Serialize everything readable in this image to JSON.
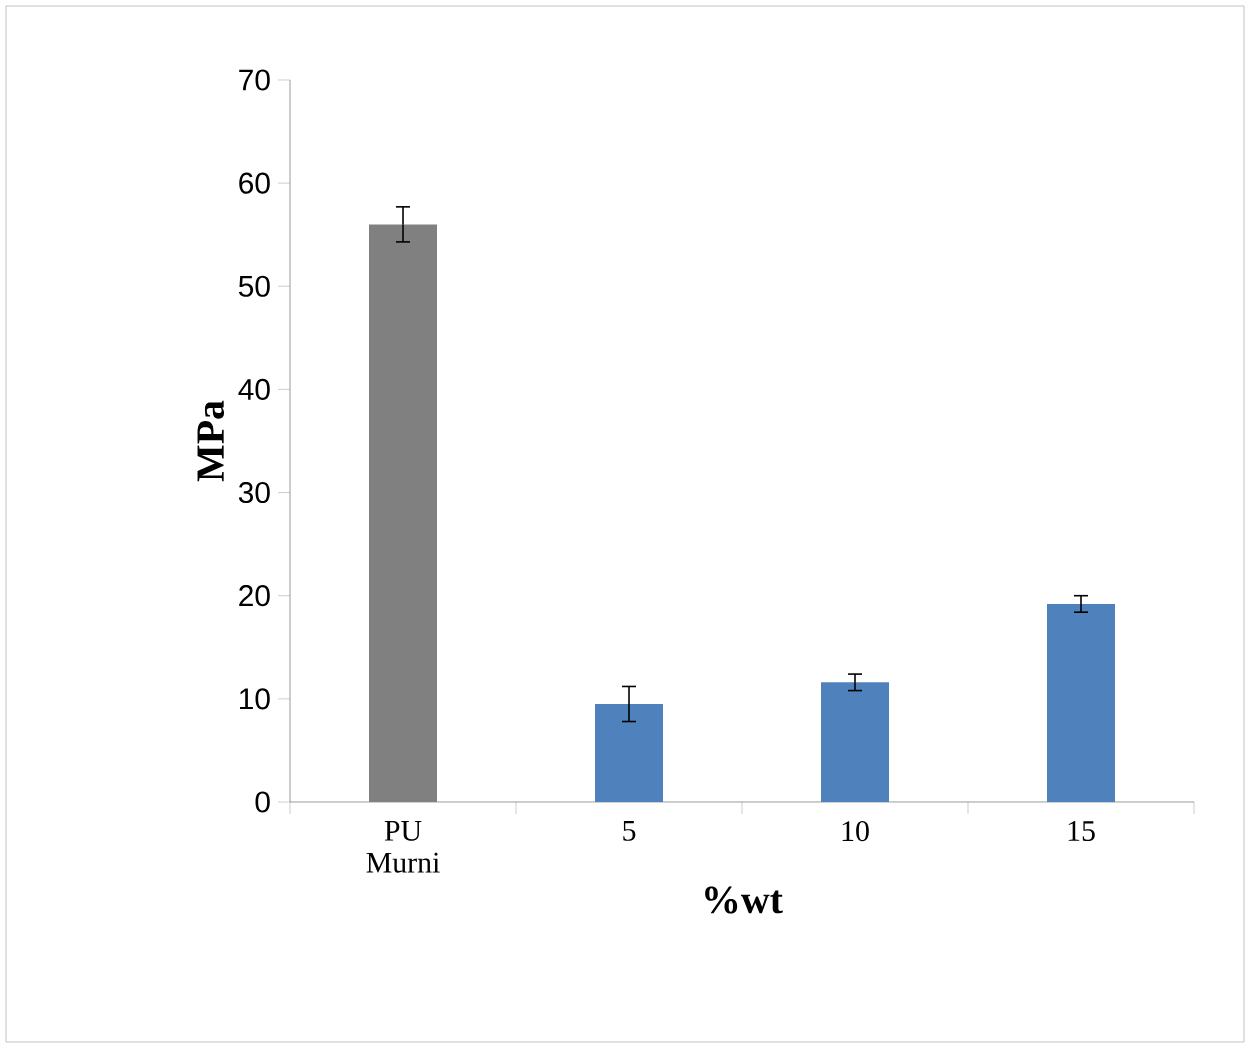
{
  "chart_data": {
    "type": "bar",
    "xlabel": "%wt",
    "ylabel": "MPa",
    "categories": [
      "PU Murni",
      "5",
      "10",
      "15"
    ],
    "values": [
      56.0,
      9.5,
      11.6,
      19.2
    ],
    "errors": [
      1.7,
      1.7,
      0.8,
      0.8
    ],
    "colors": [
      "#808080",
      "#4f81bd",
      "#4f81bd",
      "#4f81bd"
    ],
    "ylim": [
      0,
      70
    ],
    "yticks": [
      0,
      10,
      20,
      30,
      40,
      50,
      60,
      70
    ],
    "grid": false
  }
}
